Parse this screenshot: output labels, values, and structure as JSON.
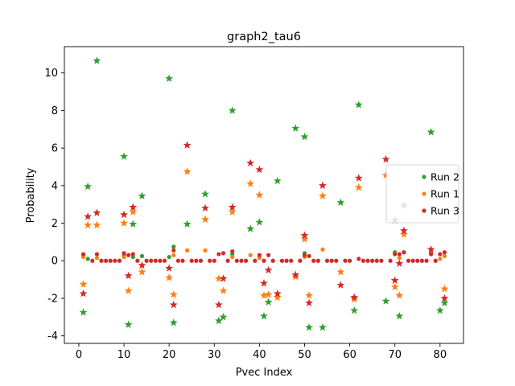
{
  "chart_data": {
    "type": "scatter",
    "title": "graph2_tau6",
    "xlabel": "Pvec Index",
    "ylabel": "Probability",
    "xlim": [
      -3.2,
      85.2
    ],
    "ylim": [
      -4.4,
      11.4
    ],
    "xticks": [
      0,
      10,
      20,
      30,
      40,
      50,
      60,
      70,
      80
    ],
    "yticks": [
      -4,
      -2,
      0,
      2,
      4,
      6,
      8,
      10
    ],
    "grid": false,
    "legend_position": "center-right",
    "series": [
      {
        "name": "Run 2",
        "color": "#2ca02c",
        "points": [
          {
            "x": 1,
            "y": 0.3
          },
          {
            "x": 1,
            "y": -2.75,
            "m": "star"
          },
          {
            "x": 2,
            "y": 0.1
          },
          {
            "x": 2,
            "y": 3.95,
            "m": "star"
          },
          {
            "x": 4,
            "y": 10.65,
            "m": "star"
          },
          {
            "x": 10,
            "y": 0.3
          },
          {
            "x": 10,
            "y": 5.55,
            "m": "star"
          },
          {
            "x": 11,
            "y": -3.4,
            "m": "star"
          },
          {
            "x": 12,
            "y": 0.2
          },
          {
            "x": 12,
            "y": 1.95,
            "m": "star"
          },
          {
            "x": 14,
            "y": 0.25
          },
          {
            "x": 14,
            "y": 3.45,
            "m": "star"
          },
          {
            "x": 20,
            "y": 0.2
          },
          {
            "x": 20,
            "y": 9.7,
            "m": "star"
          },
          {
            "x": 21,
            "y": 0.75
          },
          {
            "x": 21,
            "y": -3.3,
            "m": "star"
          },
          {
            "x": 24,
            "y": 1.95,
            "m": "star"
          },
          {
            "x": 28,
            "y": 3.55,
            "m": "star"
          },
          {
            "x": 31,
            "y": -3.2,
            "m": "star"
          },
          {
            "x": 32,
            "y": -3.0,
            "m": "star"
          },
          {
            "x": 34,
            "y": 0.35
          },
          {
            "x": 34,
            "y": 8.0,
            "m": "star"
          },
          {
            "x": 38,
            "y": 1.7,
            "m": "star"
          },
          {
            "x": 40,
            "y": 2.05,
            "m": "star"
          },
          {
            "x": 41,
            "y": -2.95,
            "m": "star"
          },
          {
            "x": 42,
            "y": -2.2,
            "m": "star"
          },
          {
            "x": 44,
            "y": 4.25,
            "m": "star"
          },
          {
            "x": 48,
            "y": 7.05,
            "m": "star"
          },
          {
            "x": 50,
            "y": 0.4
          },
          {
            "x": 50,
            "y": 6.6,
            "m": "star"
          },
          {
            "x": 51,
            "y": -3.55,
            "m": "star"
          },
          {
            "x": 54,
            "y": -3.55,
            "m": "star"
          },
          {
            "x": 58,
            "y": 3.1,
            "m": "star"
          },
          {
            "x": 61,
            "y": -2.65,
            "m": "star"
          },
          {
            "x": 62,
            "y": 8.3,
            "m": "star"
          },
          {
            "x": 68,
            "y": -2.15,
            "m": "star"
          },
          {
            "x": 70,
            "y": 0.45
          },
          {
            "x": 70,
            "y": 2.15,
            "m": "star"
          },
          {
            "x": 71,
            "y": -2.95,
            "m": "star"
          },
          {
            "x": 72,
            "y": 2.95,
            "m": "star"
          },
          {
            "x": 78,
            "y": 6.85,
            "m": "star"
          },
          {
            "x": 80,
            "y": -2.65,
            "m": "star"
          },
          {
            "x": 81,
            "y": -2.25,
            "m": "star"
          }
        ]
      },
      {
        "name": "Run 1",
        "color": "#ff7f0e",
        "points": [
          {
            "x": 1,
            "y": 0.2
          },
          {
            "x": 1,
            "y": -1.25,
            "m": "star"
          },
          {
            "x": 2,
            "y": 1.9,
            "m": "star"
          },
          {
            "x": 4,
            "y": 0.15
          },
          {
            "x": 4,
            "y": 1.9,
            "m": "star"
          },
          {
            "x": 10,
            "y": 0.2
          },
          {
            "x": 10,
            "y": 2.0,
            "m": "star"
          },
          {
            "x": 11,
            "y": -1.6,
            "m": "star"
          },
          {
            "x": 12,
            "y": 2.6,
            "m": "star"
          },
          {
            "x": 14,
            "y": -0.6,
            "m": "star"
          },
          {
            "x": 20,
            "y": -0.9,
            "m": "star"
          },
          {
            "x": 21,
            "y": 0.3
          },
          {
            "x": 21,
            "y": -1.8,
            "m": "star"
          },
          {
            "x": 24,
            "y": 0.55
          },
          {
            "x": 24,
            "y": 4.75,
            "m": "star"
          },
          {
            "x": 28,
            "y": 0.55
          },
          {
            "x": 28,
            "y": 2.2,
            "m": "star"
          },
          {
            "x": 31,
            "y": -0.95,
            "m": "star"
          },
          {
            "x": 32,
            "y": -1.6,
            "m": "star"
          },
          {
            "x": 34,
            "y": 0.2
          },
          {
            "x": 34,
            "y": 2.6,
            "m": "star"
          },
          {
            "x": 38,
            "y": 0.3
          },
          {
            "x": 38,
            "y": 4.1,
            "m": "star"
          },
          {
            "x": 40,
            "y": 0.15
          },
          {
            "x": 40,
            "y": 3.5,
            "m": "star"
          },
          {
            "x": 41,
            "y": -1.85,
            "m": "star"
          },
          {
            "x": 42,
            "y": -1.8,
            "m": "star"
          },
          {
            "x": 44,
            "y": -1.95,
            "m": "star"
          },
          {
            "x": 48,
            "y": -0.85,
            "m": "star"
          },
          {
            "x": 50,
            "y": 0.2
          },
          {
            "x": 50,
            "y": 1.15,
            "m": "star"
          },
          {
            "x": 51,
            "y": -1.85,
            "m": "star"
          },
          {
            "x": 54,
            "y": 0.6
          },
          {
            "x": 54,
            "y": 3.45,
            "m": "star"
          },
          {
            "x": 58,
            "y": -0.6,
            "m": "star"
          },
          {
            "x": 61,
            "y": -2.05,
            "m": "star"
          },
          {
            "x": 62,
            "y": 3.9,
            "m": "star"
          },
          {
            "x": 68,
            "y": 4.55,
            "m": "star"
          },
          {
            "x": 70,
            "y": -1.4,
            "m": "star"
          },
          {
            "x": 71,
            "y": 0.15
          },
          {
            "x": 71,
            "y": -1.85,
            "m": "star"
          },
          {
            "x": 72,
            "y": 1.4,
            "m": "star"
          },
          {
            "x": 78,
            "y": 0.45
          },
          {
            "x": 80,
            "y": 0.1
          },
          {
            "x": 81,
            "y": 0.25
          },
          {
            "x": 81,
            "y": -1.5,
            "m": "star"
          }
        ]
      },
      {
        "name": "Run 3",
        "color": "#d62728",
        "points": [
          {
            "x": 1,
            "y": 0.35
          },
          {
            "x": 1,
            "y": -1.75,
            "m": "star"
          },
          {
            "x": 2,
            "y": 2.35,
            "m": "star"
          },
          {
            "x": 3,
            "y": 0.0
          },
          {
            "x": 4,
            "y": 0.35
          },
          {
            "x": 4,
            "y": 2.55,
            "m": "star"
          },
          {
            "x": 5,
            "y": 0.0
          },
          {
            "x": 6,
            "y": 0.0
          },
          {
            "x": 7,
            "y": 0.0
          },
          {
            "x": 8,
            "y": 0.0
          },
          {
            "x": 9,
            "y": 0.0
          },
          {
            "x": 10,
            "y": 0.4
          },
          {
            "x": 10,
            "y": 2.45,
            "m": "star"
          },
          {
            "x": 11,
            "y": 0.3
          },
          {
            "x": 11,
            "y": -0.8,
            "m": "star"
          },
          {
            "x": 12,
            "y": 0.35
          },
          {
            "x": 12,
            "y": 2.85,
            "m": "star"
          },
          {
            "x": 13,
            "y": 0.0
          },
          {
            "x": 14,
            "y": -0.25,
            "m": "star"
          },
          {
            "x": 15,
            "y": 0.0
          },
          {
            "x": 16,
            "y": 0.0
          },
          {
            "x": 17,
            "y": 0.0
          },
          {
            "x": 18,
            "y": 0.0
          },
          {
            "x": 19,
            "y": 0.0
          },
          {
            "x": 20,
            "y": -0.4,
            "m": "star"
          },
          {
            "x": 21,
            "y": 0.55
          },
          {
            "x": 21,
            "y": -2.35,
            "m": "star"
          },
          {
            "x": 22,
            "y": 0.0
          },
          {
            "x": 23,
            "y": 0.0
          },
          {
            "x": 24,
            "y": 6.15,
            "m": "star"
          },
          {
            "x": 25,
            "y": 0.0
          },
          {
            "x": 26,
            "y": 0.0
          },
          {
            "x": 27,
            "y": 0.0
          },
          {
            "x": 28,
            "y": 2.8,
            "m": "star"
          },
          {
            "x": 29,
            "y": 0.0
          },
          {
            "x": 30,
            "y": 0.0
          },
          {
            "x": 31,
            "y": 0.35
          },
          {
            "x": 31,
            "y": -2.35,
            "m": "star"
          },
          {
            "x": 32,
            "y": 0.4
          },
          {
            "x": 32,
            "y": -0.95,
            "m": "star"
          },
          {
            "x": 33,
            "y": 0.0
          },
          {
            "x": 34,
            "y": 0.5
          },
          {
            "x": 34,
            "y": 2.85,
            "m": "star"
          },
          {
            "x": 35,
            "y": 0.0
          },
          {
            "x": 36,
            "y": 0.0
          },
          {
            "x": 37,
            "y": 0.0
          },
          {
            "x": 38,
            "y": 5.2,
            "m": "star"
          },
          {
            "x": 39,
            "y": 0.0
          },
          {
            "x": 40,
            "y": 0.3
          },
          {
            "x": 40,
            "y": 4.85,
            "m": "star"
          },
          {
            "x": 41,
            "y": 0.0
          },
          {
            "x": 41,
            "y": -1.2,
            "m": "star"
          },
          {
            "x": 42,
            "y": 0.3
          },
          {
            "x": 42,
            "y": -0.5,
            "m": "star"
          },
          {
            "x": 43,
            "y": 0.0
          },
          {
            "x": 44,
            "y": -1.75,
            "m": "star"
          },
          {
            "x": 45,
            "y": 0.0
          },
          {
            "x": 46,
            "y": 0.0
          },
          {
            "x": 47,
            "y": 0.0
          },
          {
            "x": 48,
            "y": -0.75,
            "m": "star"
          },
          {
            "x": 49,
            "y": 0.0
          },
          {
            "x": 50,
            "y": 0.3
          },
          {
            "x": 50,
            "y": 1.35,
            "m": "star"
          },
          {
            "x": 51,
            "y": 0.25
          },
          {
            "x": 51,
            "y": -2.25,
            "m": "star"
          },
          {
            "x": 52,
            "y": 0.0
          },
          {
            "x": 53,
            "y": 0.0
          },
          {
            "x": 54,
            "y": 4.0,
            "m": "star"
          },
          {
            "x": 55,
            "y": 0.0
          },
          {
            "x": 56,
            "y": 0.0
          },
          {
            "x": 57,
            "y": 0.0
          },
          {
            "x": 58,
            "y": -1.3,
            "m": "star"
          },
          {
            "x": 59,
            "y": 0.0
          },
          {
            "x": 60,
            "y": 0.0
          },
          {
            "x": 61,
            "y": -1.95,
            "m": "star"
          },
          {
            "x": 62,
            "y": 0.1
          },
          {
            "x": 62,
            "y": 4.4,
            "m": "star"
          },
          {
            "x": 63,
            "y": 0.0
          },
          {
            "x": 64,
            "y": 0.0
          },
          {
            "x": 65,
            "y": 0.0
          },
          {
            "x": 66,
            "y": 0.0
          },
          {
            "x": 67,
            "y": 0.0
          },
          {
            "x": 68,
            "y": 5.4,
            "m": "star"
          },
          {
            "x": 69,
            "y": 0.0
          },
          {
            "x": 70,
            "y": 0.35
          },
          {
            "x": 70,
            "y": -1.05,
            "m": "star"
          },
          {
            "x": 71,
            "y": 0.35
          },
          {
            "x": 71,
            "y": -0.15,
            "m": "star"
          },
          {
            "x": 72,
            "y": 0.45
          },
          {
            "x": 72,
            "y": 1.6,
            "m": "star"
          },
          {
            "x": 73,
            "y": 0.0
          },
          {
            "x": 74,
            "y": 0.0
          },
          {
            "x": 75,
            "y": 0.0
          },
          {
            "x": 76,
            "y": 0.0
          },
          {
            "x": 77,
            "y": 0.0
          },
          {
            "x": 78,
            "y": 0.35
          },
          {
            "x": 78,
            "y": 0.6,
            "m": "star"
          },
          {
            "x": 79,
            "y": 0.0
          },
          {
            "x": 80,
            "y": 0.35
          },
          {
            "x": 81,
            "y": 0.45
          },
          {
            "x": 81,
            "y": -2.0,
            "m": "star"
          }
        ]
      }
    ]
  }
}
